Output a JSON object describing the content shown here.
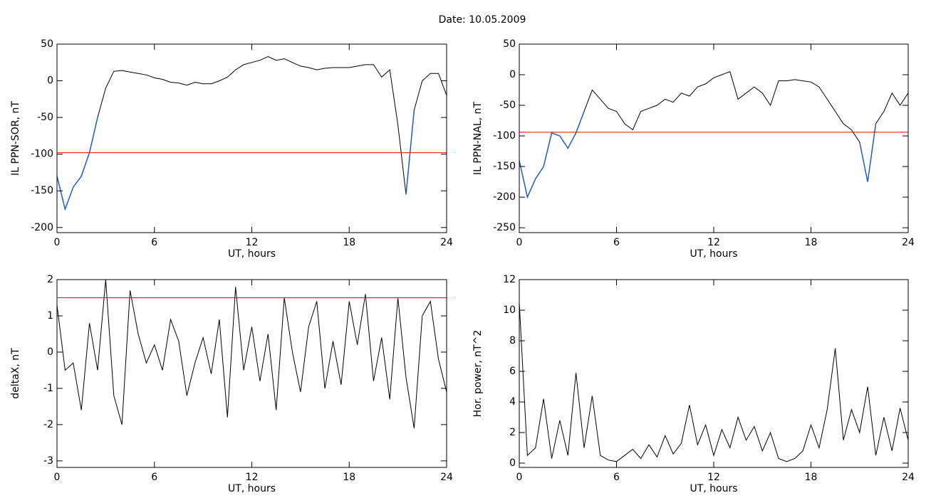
{
  "title": "Date:  10.05.2009",
  "chart_data": [
    {
      "type": "line",
      "xlabel": "UT, hours",
      "ylabel": "IL PPN-SOR, nT",
      "x": [
        0,
        0.5,
        1,
        1.5,
        2,
        2.5,
        3,
        3.5,
        4,
        4.5,
        5,
        5.5,
        6,
        6.5,
        7,
        7.5,
        8,
        8.5,
        9,
        9.5,
        10,
        10.5,
        11,
        11.5,
        12,
        12.5,
        13,
        13.5,
        14,
        14.5,
        15,
        15.5,
        16,
        16.5,
        17,
        17.5,
        18,
        18.5,
        19,
        19.5,
        20,
        20.5,
        21,
        21.5,
        22,
        22.5,
        23,
        23.5,
        24
      ],
      "series": [
        {
          "color": "#000000",
          "values": [
            -130,
            -175,
            -145,
            -130,
            -98,
            -50,
            -10,
            13,
            14,
            12,
            10,
            8,
            4,
            2,
            -2,
            -3,
            -6,
            -2,
            -4,
            -4,
            0,
            5,
            15,
            22,
            25,
            28,
            33,
            28,
            30,
            25,
            20,
            18,
            15,
            17,
            18,
            18,
            18,
            20,
            22,
            22,
            5,
            15,
            -60,
            -155,
            -40,
            0,
            10,
            10,
            -20
          ]
        }
      ],
      "xlim": [
        0,
        24
      ],
      "xticks": [
        0,
        6,
        12,
        18,
        24
      ],
      "ylim": [
        -207,
        50
      ],
      "yticks": [
        -200,
        -150,
        -100,
        -50,
        0,
        50
      ],
      "threshold": -98,
      "threshold_color": "#ff0000",
      "highlight_color": "#1f5fd0"
    },
    {
      "type": "line",
      "xlabel": "UT, hours",
      "ylabel": "IL PPN-NAL, nT",
      "x": [
        0,
        0.5,
        1,
        1.5,
        2,
        2.5,
        3,
        3.5,
        4,
        4.5,
        5,
        5.5,
        6,
        6.5,
        7,
        7.5,
        8,
        8.5,
        9,
        9.5,
        10,
        10.5,
        11,
        11.5,
        12,
        12.5,
        13,
        13.5,
        14,
        14.5,
        15,
        15.5,
        16,
        16.5,
        17,
        17.5,
        18,
        18.5,
        19,
        19.5,
        20,
        20.5,
        21,
        21.5,
        22,
        22.5,
        23,
        23.5,
        24
      ],
      "series": [
        {
          "color": "#000000",
          "values": [
            -140,
            -200,
            -170,
            -150,
            -95,
            -100,
            -120,
            -95,
            -60,
            -25,
            -40,
            -55,
            -60,
            -80,
            -90,
            -60,
            -55,
            -50,
            -40,
            -45,
            -30,
            -35,
            -20,
            -15,
            -5,
            0,
            5,
            -40,
            -30,
            -20,
            -30,
            -50,
            -10,
            -10,
            -8,
            -10,
            -12,
            -20,
            -40,
            -60,
            -80,
            -90,
            -110,
            -175,
            -80,
            -60,
            -30,
            -50,
            -30
          ]
        }
      ],
      "xlim": [
        0,
        24
      ],
      "xticks": [
        0,
        6,
        12,
        18,
        24
      ],
      "ylim": [
        -258,
        50
      ],
      "yticks": [
        -250,
        -200,
        -150,
        -100,
        -50,
        0,
        50
      ],
      "threshold": -94,
      "threshold_color": "#ff0000",
      "highlight_color": "#1f5fd0"
    },
    {
      "type": "line",
      "xlabel": "UT, hours",
      "ylabel": "deltaX, nT",
      "x": [
        0,
        0.5,
        1,
        1.5,
        2,
        2.5,
        3,
        3.5,
        4,
        4.5,
        5,
        5.5,
        6,
        6.5,
        7,
        7.5,
        8,
        8.5,
        9,
        9.5,
        10,
        10.5,
        11,
        11.5,
        12,
        12.5,
        13,
        13.5,
        14,
        14.5,
        15,
        15.5,
        16,
        16.5,
        17,
        17.5,
        18,
        18.5,
        19,
        19.5,
        20,
        20.5,
        21,
        21.5,
        22,
        22.5,
        23,
        23.5,
        24
      ],
      "series": [
        {
          "color": "#000000",
          "values": [
            1.3,
            -0.5,
            -0.3,
            -1.6,
            0.8,
            -0.5,
            2.0,
            -1.2,
            -2.0,
            1.7,
            0.5,
            -0.3,
            0.2,
            -0.5,
            0.9,
            0.3,
            -1.2,
            -0.3,
            0.4,
            -0.6,
            0.9,
            -1.8,
            1.8,
            -0.5,
            0.7,
            -0.8,
            0.5,
            -1.6,
            1.5,
            0.0,
            -1.1,
            0.7,
            1.4,
            -1.0,
            0.3,
            -0.9,
            1.4,
            0.2,
            1.6,
            -0.8,
            0.4,
            -1.3,
            1.5,
            -0.7,
            -2.1,
            1.0,
            1.4,
            -0.2,
            -1.1
          ]
        }
      ],
      "xlim": [
        0,
        24
      ],
      "xticks": [
        0,
        6,
        12,
        18,
        24
      ],
      "ylim": [
        -3.18,
        2
      ],
      "yticks": [
        -3,
        -2,
        -1,
        0,
        1,
        2
      ],
      "threshold": 1.5,
      "threshold_color": "#ff0000"
    },
    {
      "type": "line",
      "xlabel": "UT, hours",
      "ylabel": "Hor. power, nT^2",
      "x": [
        0,
        0.5,
        1,
        1.5,
        2,
        2.5,
        3,
        3.5,
        4,
        4.5,
        5,
        5.5,
        6,
        6.5,
        7,
        7.5,
        8,
        8.5,
        9,
        9.5,
        10,
        10.5,
        11,
        11.5,
        12,
        12.5,
        13,
        13.5,
        14,
        14.5,
        15,
        15.5,
        16,
        16.5,
        17,
        17.5,
        18,
        18.5,
        19,
        19.5,
        20,
        20.5,
        21,
        21.5,
        22,
        22.5,
        23,
        23.5,
        24
      ],
      "series": [
        {
          "color": "#000000",
          "values": [
            10.5,
            0.5,
            1.0,
            4.2,
            0.3,
            2.8,
            0.5,
            5.9,
            1.0,
            4.4,
            0.5,
            0.2,
            0.1,
            0.5,
            0.9,
            0.3,
            1.2,
            0.4,
            1.8,
            0.6,
            1.3,
            3.8,
            1.2,
            2.5,
            0.5,
            2.2,
            1.0,
            3.0,
            1.5,
            2.4,
            0.8,
            2.0,
            0.3,
            0.1,
            0.3,
            0.8,
            2.5,
            1.0,
            3.5,
            7.5,
            1.5,
            3.5,
            2.0,
            5.0,
            0.5,
            3.0,
            0.8,
            3.6,
            1.5
          ]
        }
      ],
      "xlim": [
        0,
        24
      ],
      "xticks": [
        0,
        6,
        12,
        18,
        24
      ],
      "ylim": [
        -0.28,
        12
      ],
      "yticks": [
        0,
        2,
        4,
        6,
        8,
        10,
        12
      ]
    }
  ]
}
